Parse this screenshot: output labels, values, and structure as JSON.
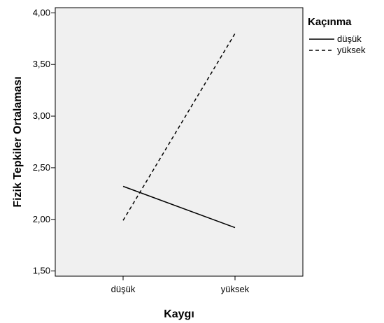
{
  "chart_data": {
    "type": "line",
    "title": "",
    "xlabel": "Kaygı",
    "ylabel": "Fizik Tepkiler Ortalaması",
    "categories": [
      "düşük",
      "yüksek"
    ],
    "ylim": [
      1.45,
      4.05
    ],
    "yticks": [
      1.5,
      2.0,
      2.5,
      3.0,
      3.5,
      4.0
    ],
    "ytick_labels": [
      "1,50",
      "2,00",
      "2,50",
      "3,00",
      "3,50",
      "4,00"
    ],
    "grid": false,
    "legend": {
      "title": "Kaçınma",
      "placement": "top-right-outside"
    },
    "series": [
      {
        "name": "düşük",
        "values": [
          2.32,
          1.92
        ],
        "dash": "solid",
        "color": "#000000"
      },
      {
        "name": "yüksek",
        "values": [
          1.99,
          3.8
        ],
        "dash": "dashed",
        "color": "#000000"
      }
    ],
    "plot_background": "#f0f0f0"
  }
}
